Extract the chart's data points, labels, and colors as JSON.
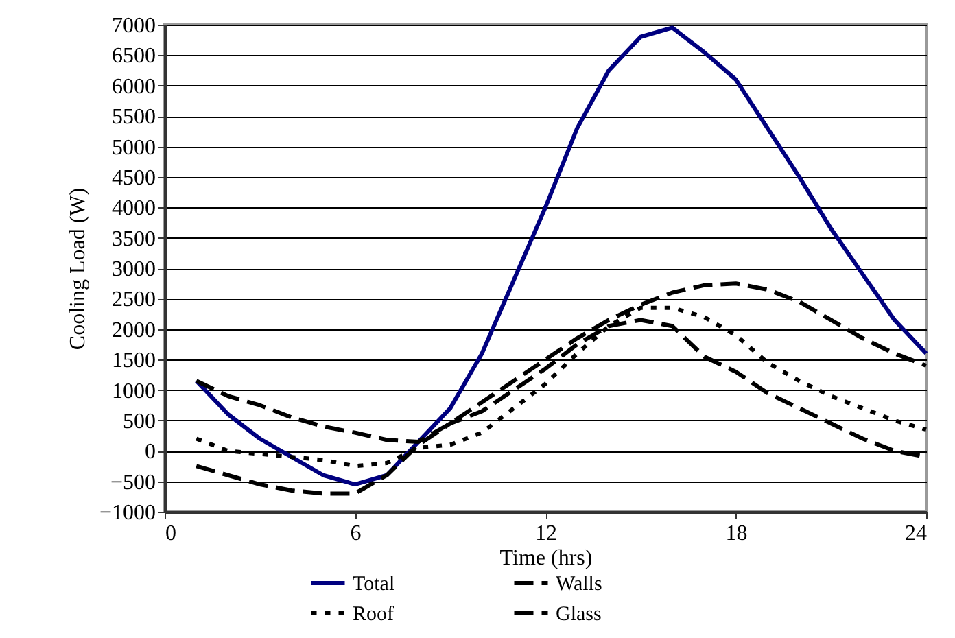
{
  "chart_data": {
    "type": "line",
    "xlabel": "Time (hrs)",
    "ylabel": "Cooling Load (W)",
    "x": [
      1,
      2,
      3,
      4,
      5,
      6,
      7,
      8,
      9,
      10,
      11,
      12,
      13,
      14,
      15,
      16,
      17,
      18,
      19,
      20,
      21,
      22,
      23,
      24
    ],
    "xlim": [
      0,
      24
    ],
    "xticks": [
      0,
      6,
      12,
      18,
      24
    ],
    "ylim": [
      -1000,
      7000
    ],
    "yticks": [
      -1000,
      -500,
      0,
      500,
      1000,
      1500,
      2000,
      2500,
      3000,
      3500,
      4000,
      4500,
      5000,
      5500,
      6000,
      6500,
      7000
    ],
    "grid": "y",
    "legend": "bottom",
    "marker": "none",
    "series": [
      {
        "name": "Total",
        "color": "#000080",
        "line_style": "solid",
        "values": [
          1150,
          600,
          200,
          -100,
          -400,
          -550,
          -400,
          150,
          700,
          1600,
          2800,
          4000,
          5300,
          6250,
          6800,
          6950,
          6550,
          6100,
          5300,
          4500,
          3650,
          2900,
          2150,
          1600
        ]
      },
      {
        "name": "Walls",
        "color": "#000000",
        "line_style": "dashed",
        "values": [
          1150,
          900,
          750,
          550,
          400,
          300,
          180,
          150,
          450,
          800,
          1150,
          1500,
          1850,
          2150,
          2400,
          2600,
          2720,
          2750,
          2650,
          2450,
          2150,
          1850,
          1600,
          1400
        ]
      },
      {
        "name": "Roof",
        "color": "#000000",
        "line_style": "dotted",
        "values": [
          200,
          0,
          -50,
          -100,
          -150,
          -250,
          -200,
          50,
          100,
          300,
          700,
          1100,
          1600,
          2050,
          2350,
          2350,
          2200,
          1900,
          1450,
          1150,
          900,
          700,
          500,
          350
        ]
      },
      {
        "name": "Glass",
        "color": "#000000",
        "line_style": "dashed",
        "values": [
          -250,
          -400,
          -550,
          -650,
          -700,
          -700,
          -400,
          100,
          450,
          650,
          1000,
          1350,
          1750,
          2050,
          2150,
          2050,
          1550,
          1300,
          950,
          700,
          450,
          200,
          0,
          -100
        ]
      }
    ]
  }
}
